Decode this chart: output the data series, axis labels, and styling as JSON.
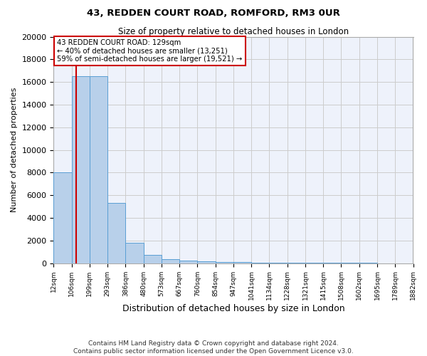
{
  "title1": "43, REDDEN COURT ROAD, ROMFORD, RM3 0UR",
  "title2": "Size of property relative to detached houses in London",
  "xlabel": "Distribution of detached houses by size in London",
  "ylabel": "Number of detached properties",
  "bar_color": "#b8d0ea",
  "bar_edge_color": "#5a9fd4",
  "tick_labels": [
    "12sqm",
    "106sqm",
    "199sqm",
    "293sqm",
    "386sqm",
    "480sqm",
    "573sqm",
    "667sqm",
    "760sqm",
    "854sqm",
    "947sqm",
    "1041sqm",
    "1134sqm",
    "1228sqm",
    "1321sqm",
    "1415sqm",
    "1508sqm",
    "1602sqm",
    "1695sqm",
    "1789sqm",
    "1882sqm"
  ],
  "bar_heights": [
    8050,
    16500,
    16500,
    5300,
    1800,
    700,
    380,
    230,
    160,
    100,
    70,
    50,
    35,
    25,
    18,
    13,
    10,
    8,
    6,
    4
  ],
  "property_bin": 1,
  "red_line_x": 1.25,
  "red_line_color": "#cc0000",
  "annotation_text": "43 REDDEN COURT ROAD: 129sqm\n← 40% of detached houses are smaller (13,251)\n59% of semi-detached houses are larger (19,521) →",
  "annotation_box_color": "#cc0000",
  "ylim": [
    0,
    20000
  ],
  "yticks": [
    0,
    2000,
    4000,
    6000,
    8000,
    10000,
    12000,
    14000,
    16000,
    18000,
    20000
  ],
  "footer_text": "Contains HM Land Registry data © Crown copyright and database right 2024.\nContains public sector information licensed under the Open Government Licence v3.0.",
  "background_color": "#eef2fb",
  "grid_color": "#cccccc"
}
